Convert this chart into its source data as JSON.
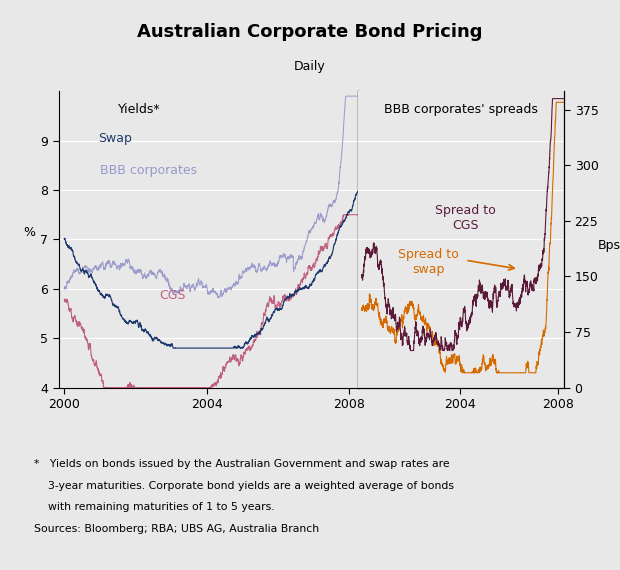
{
  "title": "Australian Corporate Bond Pricing",
  "subtitle": "Daily",
  "ylabel_left": "%",
  "ylabel_right": "Bps",
  "ylim_left": [
    4,
    10
  ],
  "ylim_right": [
    0,
    400
  ],
  "yticks_left": [
    4,
    5,
    6,
    7,
    8,
    9
  ],
  "yticks_right": [
    0,
    75,
    150,
    225,
    300,
    375
  ],
  "left_panel_label": "Yields*",
  "right_panel_label": "BBB corporates' spreads",
  "footnote": "*   Yields on bonds issued by the Australian Government and swap rates are\n    3-year maturities. Corporate bond yields are a weighted average of bonds\n    with remaining maturities of 1 to 5 years.\nSources: Bloomberg; RBA; UBS AG, Australia Branch",
  "colors": {
    "bbb": "#9999CC",
    "swap": "#1F3B6E",
    "cgs": "#C06080",
    "spread_cgs": "#5C1A3A",
    "spread_swap": "#D46A00"
  },
  "background_color": "#E8E8E8",
  "grid_color": "#FFFFFF",
  "left_xticks": [
    2000,
    2004,
    2008
  ],
  "right_xticks": [
    2004,
    2008
  ]
}
